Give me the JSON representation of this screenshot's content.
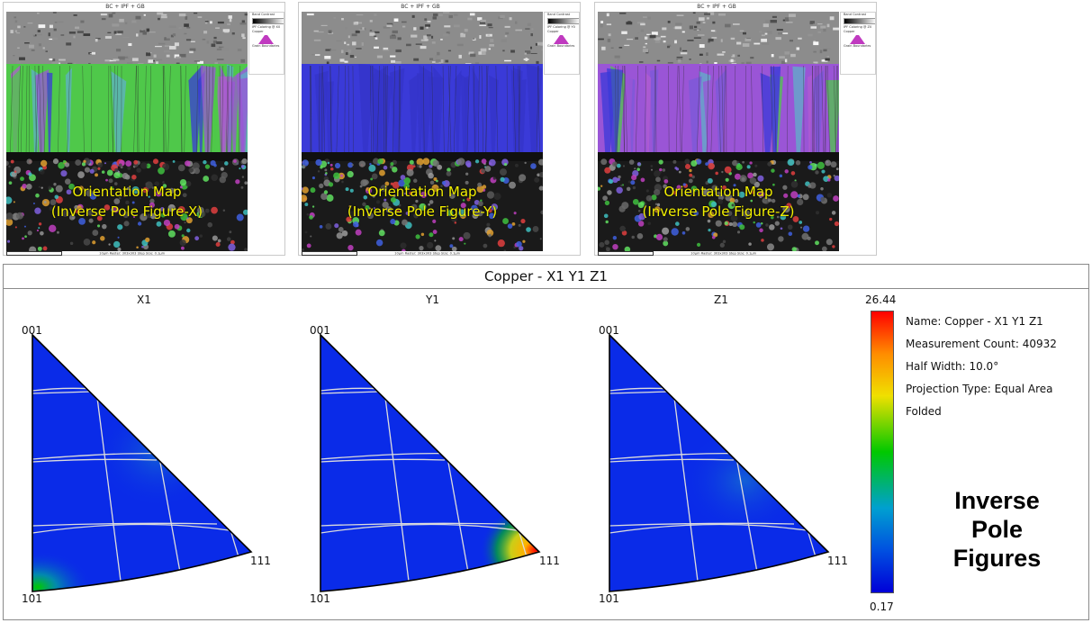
{
  "maps": [
    {
      "title": "BC + IPF + GB",
      "overlay_line1": "Orientation Map",
      "overlay_line2": "(Inverse Pole Figure-X)",
      "side_band": "Band Contrast",
      "side_ipf": "IPF Coloring @ X0",
      "side_phase": "Copper",
      "side_gb": "Grain Boundaries",
      "footer_scale": "10μm",
      "footer_raster": "Raster: 303x303",
      "footer_step": "Step Size: 0.1μm",
      "tint": "#4fc84a"
    },
    {
      "title": "BC + IPF + GB",
      "overlay_line1": "Orientation Map",
      "overlay_line2": "(Inverse Pole Figure-Y)",
      "side_band": "Band Contrast",
      "side_ipf": "IPF Coloring @ Y0",
      "side_phase": "Copper",
      "side_gb": "Grain Boundaries",
      "footer_scale": "10μm",
      "footer_raster": "Raster: 303x303",
      "footer_step": "Step Size: 0.1μm",
      "tint": "#3a3ad8"
    },
    {
      "title": "BC + IPF + GB",
      "overlay_line1": "Orientation Map",
      "overlay_line2": "(Inverse Pole Figure-Z)",
      "side_band": "Band Contrast",
      "side_ipf": "IPF Coloring @ Z0",
      "side_phase": "Copper",
      "side_gb": "Grain Boundaries",
      "footer_scale": "10μm",
      "footer_raster": "Raster: 303x303",
      "footer_step": "Step Size: 0.1μm",
      "tint": "#9a55d6"
    }
  ],
  "ipf": {
    "header": "Copper - X1 Y1 Z1",
    "figures": [
      {
        "title": "X1",
        "corner_top": "001",
        "corner_bottom": "101",
        "corner_right": "111",
        "hotspot": "101"
      },
      {
        "title": "Y1",
        "corner_top": "001",
        "corner_bottom": "101",
        "corner_right": "111",
        "hotspot": "111"
      },
      {
        "title": "Z1",
        "corner_top": "001",
        "corner_bottom": "101",
        "corner_right": "111",
        "hotspot": "none"
      }
    ],
    "colorbar": {
      "max": "26.44",
      "min": "0.17"
    },
    "info": {
      "name": "Name: Copper - X1 Y1 Z1",
      "count": "Measurement Count: 40932",
      "half_width": "Half Width: 10.0°",
      "projection": "Projection Type: Equal Area",
      "folded": "Folded"
    },
    "big_title_1": "Inverse",
    "big_title_2": "Pole",
    "big_title_3": "Figures"
  },
  "colors": {
    "ipf_blue": "#0a2be8",
    "grid": "#dcdcdc",
    "overlay_text": "#f3f000"
  }
}
